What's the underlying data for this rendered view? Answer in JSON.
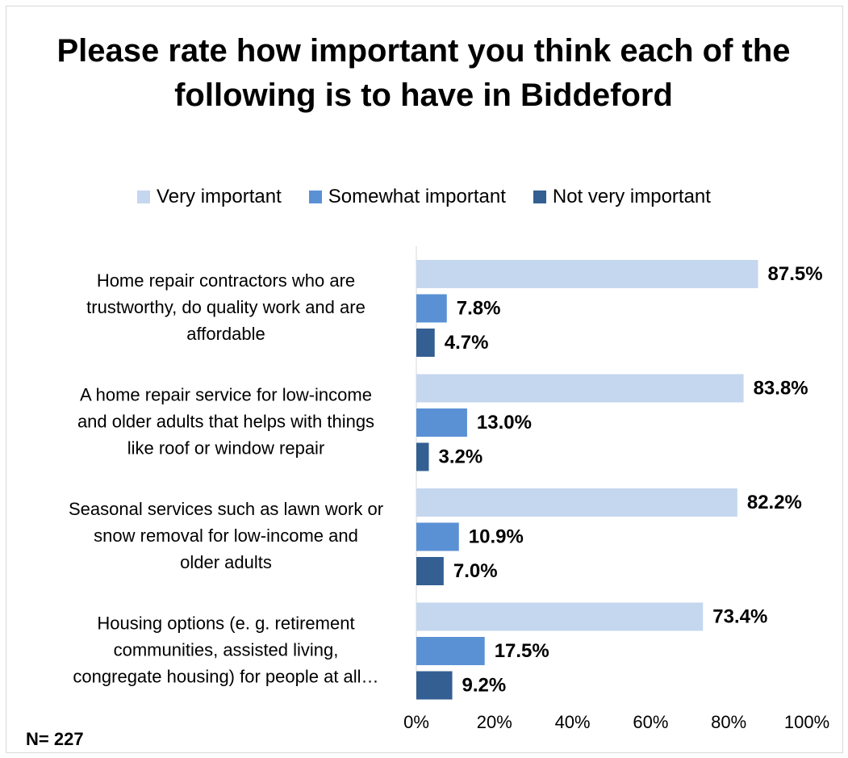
{
  "chart_data": {
    "type": "bar",
    "orientation": "horizontal",
    "title": "Please rate how important you think each of the following is to have in Biddeford",
    "categories": [
      [
        "Home repair contractors who are",
        "trustworthy, do quality work and are",
        "affordable"
      ],
      [
        "A home repair service for low-income",
        "and older adults that helps with things",
        "like roof or window repair"
      ],
      [
        "Seasonal services such as lawn work or",
        "snow removal for low-income and",
        "older adults"
      ],
      [
        "Housing options (e. g. retirement",
        "communities, assisted living,",
        "congregate housing) for people at all…"
      ]
    ],
    "series": [
      {
        "name": "Very important",
        "color": "#c5d7ef",
        "values": [
          87.5,
          83.8,
          82.2,
          73.4
        ]
      },
      {
        "name": "Somewhat important",
        "color": "#5a91d5",
        "values": [
          7.8,
          13.0,
          10.9,
          17.5
        ]
      },
      {
        "name": "Not very important",
        "color": "#335f93",
        "values": [
          4.7,
          3.2,
          7.0,
          9.2
        ]
      }
    ],
    "value_labels": [
      [
        "87.5%",
        "83.8%",
        "82.2%",
        "73.4%"
      ],
      [
        "7.8%",
        "13.0%",
        "10.9%",
        "17.5%"
      ],
      [
        "4.7%",
        "3.2%",
        "7.0%",
        "9.2%"
      ]
    ],
    "x_ticks": [
      "0%",
      "20%",
      "40%",
      "60%",
      "80%",
      "100%"
    ],
    "xlim": [
      0,
      100
    ],
    "grid": false,
    "legend_position": "top",
    "note": "N= 227"
  }
}
